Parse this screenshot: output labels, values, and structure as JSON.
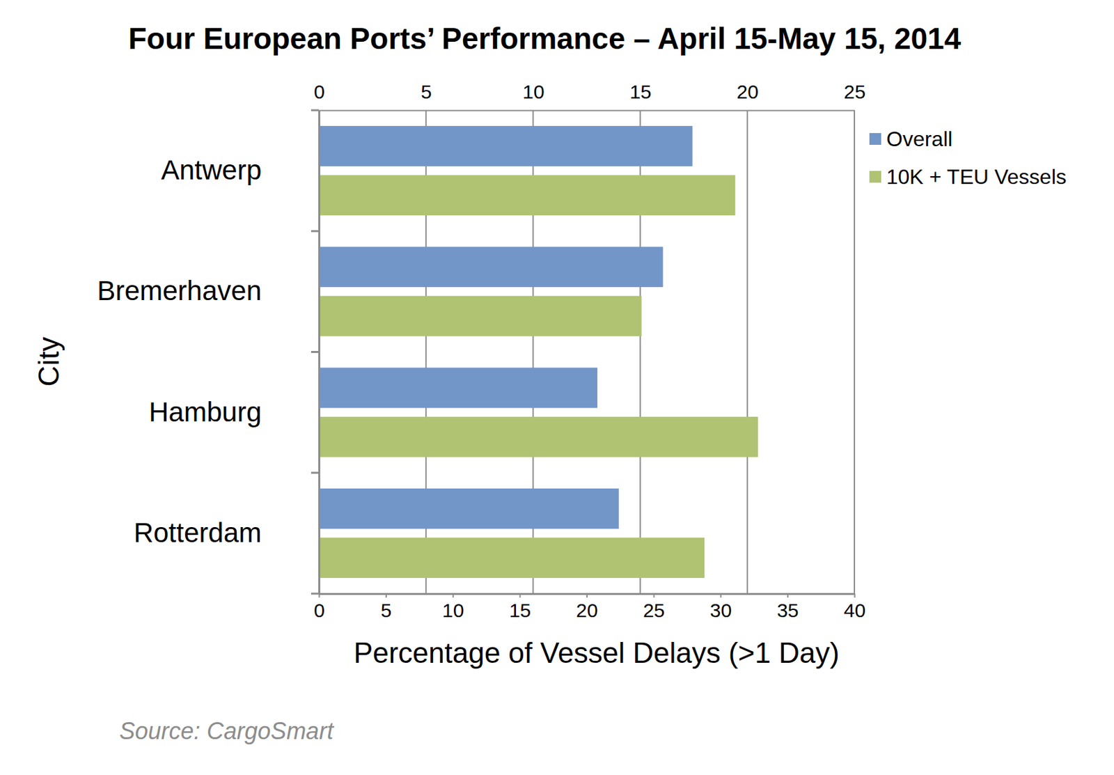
{
  "chart_data": {
    "type": "bar",
    "orientation": "horizontal",
    "title": "Four European Ports’ Performance – April 15-May 15, 2014",
    "x_label": "Percentage of Vessel Delays (>1 Day)",
    "y_label": "City",
    "source": "Source: CargoSmart",
    "categories": [
      "Antwerp",
      "Bremerhaven",
      "Hamburg",
      "Rotterdam"
    ],
    "series": [
      {
        "name": "Overall",
        "color": "#7396c8",
        "values": [
          27.9,
          25.7,
          20.8,
          22.4
        ]
      },
      {
        "name": "10K + TEU Vessels",
        "color": "#afc372",
        "values": [
          31.1,
          24.1,
          32.8,
          28.8
        ]
      }
    ],
    "xlim": [
      0,
      40
    ],
    "xticks": [
      0,
      5,
      10,
      15,
      20,
      25,
      30,
      35,
      40
    ],
    "x2lim": [
      0,
      25
    ],
    "x2ticks": [
      0,
      5,
      10,
      15,
      20,
      25
    ],
    "grid": true,
    "legend": "top-right"
  }
}
